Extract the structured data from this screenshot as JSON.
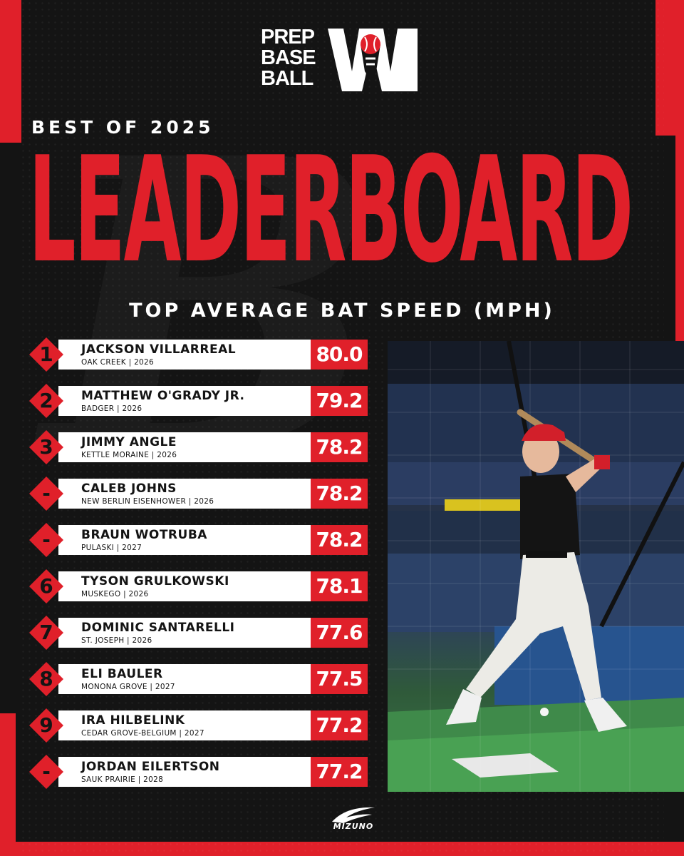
{
  "brand": {
    "logo_lines": [
      "PREP",
      "BASE",
      "BALL"
    ],
    "logo_state": "WI",
    "sponsor": "MIZUNO",
    "colors": {
      "red": "#e0202a",
      "dark": "#141414",
      "white": "#ffffff"
    }
  },
  "header": {
    "subtitle": "BEST OF 2025",
    "title": "LEADERBOARD",
    "metric": "TOP AVERAGE BAT SPEED (MPH)"
  },
  "leaderboard": [
    {
      "rank": "1",
      "name": "JACKSON VILLARREAL",
      "meta": "OAK CREEK | 2026",
      "speed": "80.0"
    },
    {
      "rank": "2",
      "name": "MATTHEW O'GRADY JR.",
      "meta": "BADGER | 2026",
      "speed": "79.2"
    },
    {
      "rank": "3",
      "name": "JIMMY ANGLE",
      "meta": "KETTLE MORAINE | 2026",
      "speed": "78.2"
    },
    {
      "rank": "-",
      "name": "CALEB JOHNS",
      "meta": "NEW BERLIN EISENHOWER | 2026",
      "speed": "78.2"
    },
    {
      "rank": "-",
      "name": "BRAUN WOTRUBA",
      "meta": "PULASKI | 2027",
      "speed": "78.2"
    },
    {
      "rank": "6",
      "name": "TYSON GRULKOWSKI",
      "meta": "MUSKEGO | 2026",
      "speed": "78.1"
    },
    {
      "rank": "7",
      "name": "DOMINIC SANTARELLI",
      "meta": "ST. JOSEPH | 2026",
      "speed": "77.6"
    },
    {
      "rank": "8",
      "name": "ELI BAULER",
      "meta": "MONONA GROVE | 2027",
      "speed": "77.5"
    },
    {
      "rank": "9",
      "name": "IRA HILBELINK",
      "meta": "CEDAR GROVE-BELGIUM | 2027",
      "speed": "77.2"
    },
    {
      "rank": "-",
      "name": "JORDAN EILERTSON",
      "meta": "SAUK PRAIRIE | 2028",
      "speed": "77.2"
    }
  ]
}
